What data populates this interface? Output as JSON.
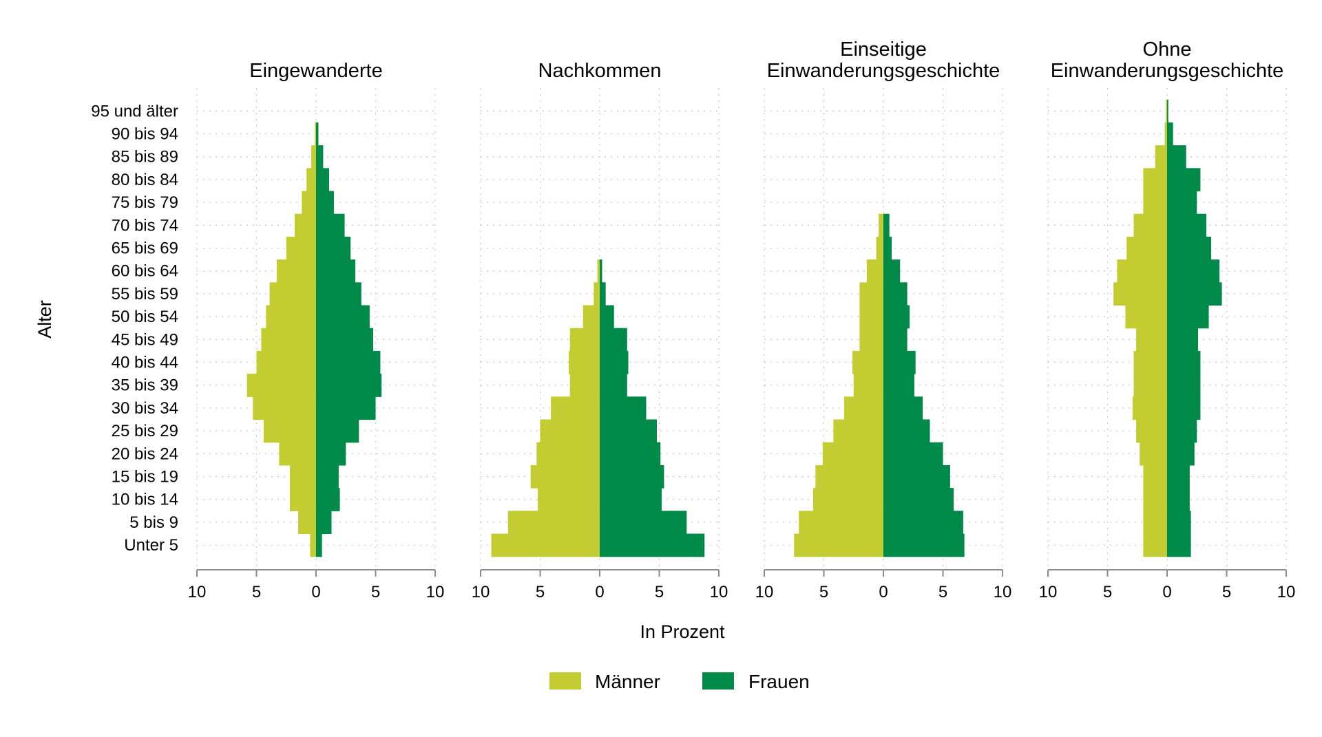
{
  "chart_data": {
    "type": "bar",
    "subtype": "population-pyramid",
    "y_axis_label": "Alter",
    "x_axis_label": "In Prozent",
    "xlim": [
      -10,
      10
    ],
    "x_ticks": [
      -10,
      -5,
      0,
      5,
      10
    ],
    "x_tick_labels": [
      "10",
      "5",
      "0",
      "5",
      "10"
    ],
    "age_groups": [
      "Unter 5",
      "5 bis 9",
      "10 bis 14",
      "15 bis 19",
      "20 bis 24",
      "25 bis 29",
      "30 bis 34",
      "35 bis 39",
      "40 bis 44",
      "45 bis 49",
      "50 bis 54",
      "55 bis 59",
      "60 bis 64",
      "65 bis 69",
      "70 bis 74",
      "75 bis 79",
      "80 bis 84",
      "85 bis 89",
      "90 bis 94",
      "95 und älter"
    ],
    "legend": [
      {
        "name": "Männer",
        "color": "#c3cd32"
      },
      {
        "name": "Frauen",
        "color": "#008a4a"
      }
    ],
    "panels": [
      {
        "title": [
          "Eingewanderte"
        ],
        "maenner": [
          0.5,
          1.5,
          2.2,
          2.2,
          3.1,
          4.4,
          5.3,
          5.8,
          5.0,
          4.6,
          4.2,
          3.9,
          3.3,
          2.5,
          1.8,
          1.2,
          0.8,
          0.4,
          0.1,
          0.0
        ],
        "frauen": [
          0.5,
          1.3,
          2.0,
          1.9,
          2.5,
          3.6,
          5.0,
          5.5,
          5.4,
          4.8,
          4.5,
          3.8,
          3.3,
          2.9,
          2.4,
          1.5,
          1.1,
          0.6,
          0.2,
          0.0
        ]
      },
      {
        "title": [
          "Nachkommen"
        ],
        "maenner": [
          9.1,
          7.7,
          5.2,
          5.8,
          5.3,
          5.0,
          4.1,
          2.5,
          2.6,
          2.5,
          1.4,
          0.5,
          0.2,
          0.0,
          0.0,
          0.0,
          0.0,
          0.0,
          0.0,
          0.0
        ],
        "frauen": [
          8.8,
          7.3,
          5.2,
          5.4,
          5.1,
          4.8,
          3.9,
          2.3,
          2.4,
          2.3,
          1.2,
          0.5,
          0.2,
          0.0,
          0.0,
          0.0,
          0.0,
          0.0,
          0.0,
          0.0
        ]
      },
      {
        "title": [
          "Einseitige",
          "Einwanderungsgeschichte"
        ],
        "maenner": [
          7.5,
          7.1,
          5.9,
          5.7,
          5.1,
          4.2,
          3.3,
          2.5,
          2.6,
          2.0,
          2.0,
          2.0,
          1.4,
          0.6,
          0.4,
          0.0,
          0.0,
          0.0,
          0.0,
          0.0
        ],
        "frauen": [
          6.8,
          6.7,
          5.9,
          5.6,
          5.0,
          3.9,
          3.3,
          2.6,
          2.7,
          2.0,
          2.2,
          2.0,
          1.4,
          0.7,
          0.5,
          0.0,
          0.0,
          0.0,
          0.0,
          0.0
        ]
      },
      {
        "title": [
          "Ohne",
          "Einwanderungsgeschichte"
        ],
        "maenner": [
          2.0,
          2.0,
          2.0,
          2.0,
          2.3,
          2.6,
          2.9,
          2.8,
          2.8,
          2.6,
          3.5,
          4.5,
          4.2,
          3.4,
          2.8,
          2.0,
          2.0,
          1.0,
          0.2,
          0.1
        ],
        "frauen": [
          2.0,
          2.0,
          1.9,
          1.9,
          2.3,
          2.5,
          2.8,
          2.8,
          2.8,
          2.6,
          3.5,
          4.6,
          4.4,
          3.7,
          3.3,
          2.5,
          2.8,
          1.6,
          0.5,
          0.1
        ]
      }
    ]
  }
}
